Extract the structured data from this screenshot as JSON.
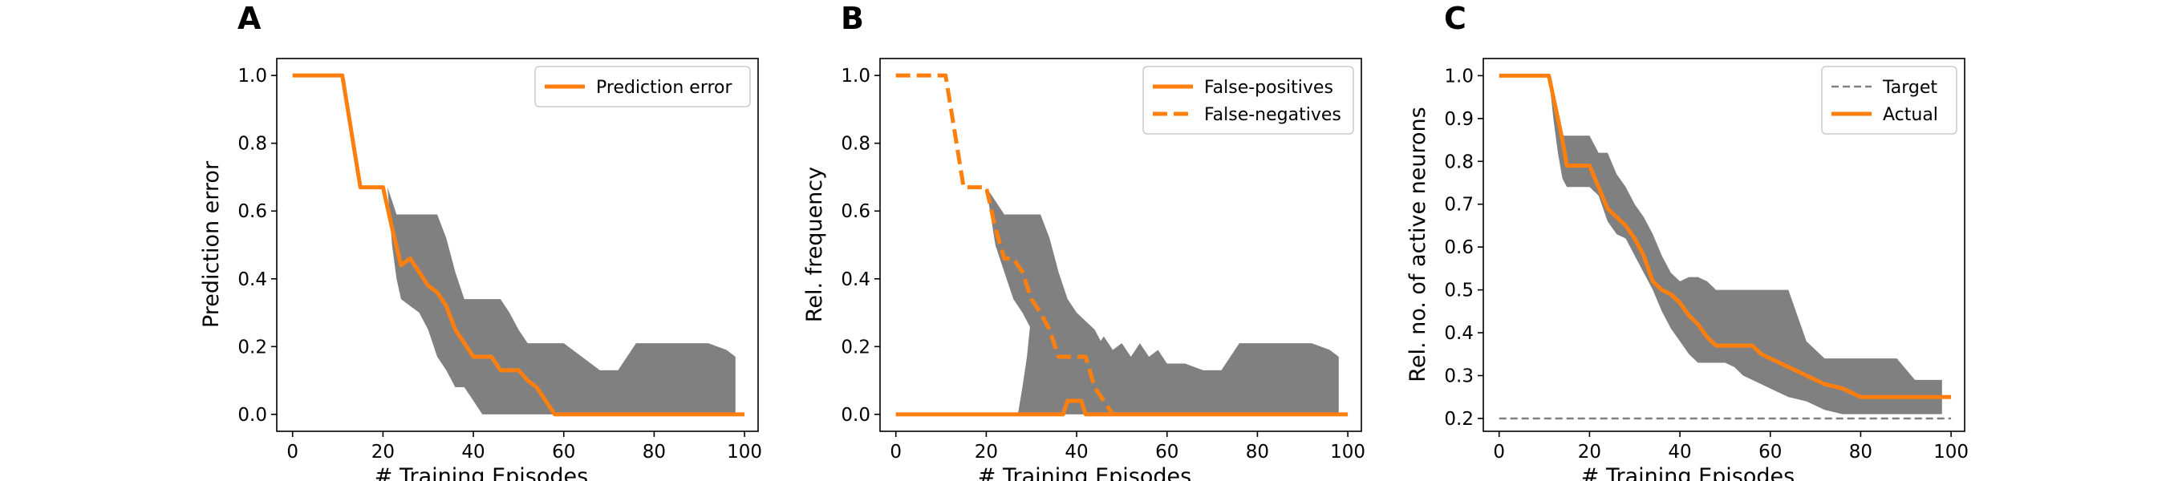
{
  "colors": {
    "line": "#ff7f0e",
    "band": "#808080",
    "target": "#808080",
    "axes": "#000000"
  },
  "chart_data": [
    {
      "panel": "A",
      "type": "line",
      "xlabel": "# Training Episodes",
      "ylabel": "Prediction error",
      "xlim": [
        -3.5,
        103
      ],
      "ylim": [
        -0.05,
        1.05
      ],
      "xticks": [
        0,
        20,
        40,
        60,
        80,
        100
      ],
      "xtick_labels": [
        "0",
        "20",
        "40",
        "60",
        "80",
        "100"
      ],
      "yticks": [
        0.0,
        0.2,
        0.4,
        0.6,
        0.8,
        1.0
      ],
      "ytick_labels": [
        "0.0",
        "0.2",
        "0.4",
        "0.6",
        "0.8",
        "1.0"
      ],
      "legend_position": "top-right",
      "bands": [
        {
          "x": [
            21,
            22,
            23,
            24,
            26,
            28,
            30,
            32,
            34,
            36,
            38,
            40,
            42,
            44,
            46,
            48,
            50,
            52,
            54,
            56,
            58,
            60,
            64,
            68,
            72,
            76,
            80,
            84,
            88,
            92,
            96,
            98
          ],
          "upper": [
            0.67,
            0.63,
            0.59,
            0.59,
            0.59,
            0.59,
            0.59,
            0.59,
            0.52,
            0.42,
            0.34,
            0.34,
            0.34,
            0.34,
            0.34,
            0.3,
            0.25,
            0.21,
            0.21,
            0.21,
            0.21,
            0.21,
            0.17,
            0.13,
            0.13,
            0.21,
            0.21,
            0.21,
            0.21,
            0.21,
            0.19,
            0.17
          ],
          "lower": [
            0.67,
            0.5,
            0.4,
            0.34,
            0.32,
            0.3,
            0.25,
            0.17,
            0.13,
            0.08,
            0.08,
            0.04,
            0.0,
            0.0,
            0.0,
            0.0,
            0.0,
            0.0,
            0.0,
            0.0,
            0.0,
            0.0,
            0.0,
            0.0,
            0.0,
            0.0,
            0.0,
            0.0,
            0.0,
            0.0,
            0.0,
            0.0
          ]
        }
      ],
      "series": [
        {
          "name": "Prediction error",
          "style": "solid",
          "x": [
            0,
            11,
            15,
            20,
            22,
            24,
            26,
            28,
            30,
            32,
            34,
            36,
            38,
            40,
            44,
            46,
            50,
            52,
            54,
            56,
            58,
            100
          ],
          "y": [
            1.0,
            1.0,
            0.67,
            0.67,
            0.55,
            0.44,
            0.46,
            0.42,
            0.38,
            0.36,
            0.32,
            0.25,
            0.21,
            0.17,
            0.17,
            0.13,
            0.13,
            0.1,
            0.08,
            0.04,
            0.0,
            0.0
          ]
        }
      ]
    },
    {
      "panel": "B",
      "type": "line",
      "xlabel": "# Training Episodes",
      "ylabel": "Rel. frequency",
      "xlim": [
        -3.5,
        103
      ],
      "ylim": [
        -0.05,
        1.05
      ],
      "xticks": [
        0,
        20,
        40,
        60,
        80,
        100
      ],
      "xtick_labels": [
        "0",
        "20",
        "40",
        "60",
        "80",
        "100"
      ],
      "yticks": [
        0.0,
        0.2,
        0.4,
        0.6,
        0.8,
        1.0
      ],
      "ytick_labels": [
        "0.0",
        "0.2",
        "0.4",
        "0.6",
        "0.8",
        "1.0"
      ],
      "legend_position": "top-right",
      "bands": [
        {
          "x": [
            20,
            22,
            24,
            26,
            28,
            30,
            32,
            34,
            36,
            38,
            40,
            44,
            48,
            50,
            52
          ],
          "upper": [
            0.67,
            0.63,
            0.59,
            0.59,
            0.59,
            0.59,
            0.59,
            0.52,
            0.42,
            0.34,
            0.3,
            0.25,
            0.15,
            0.05,
            0.0
          ],
          "lower": [
            0.67,
            0.5,
            0.42,
            0.34,
            0.3,
            0.25,
            0.17,
            0.12,
            0.08,
            0.06,
            0.04,
            0.0,
            0.0,
            0.0,
            0.0
          ]
        },
        {
          "x": [
            27,
            28,
            29,
            30,
            32,
            34,
            36,
            38,
            40,
            42,
            44,
            46,
            48,
            50,
            52,
            54,
            56,
            58,
            60,
            64,
            68,
            72,
            76,
            80,
            84,
            88,
            92,
            96,
            98
          ],
          "upper": [
            0.0,
            0.08,
            0.17,
            0.3,
            0.42,
            0.4,
            0.21,
            0.15,
            0.19,
            0.23,
            0.19,
            0.23,
            0.19,
            0.21,
            0.17,
            0.21,
            0.17,
            0.19,
            0.15,
            0.15,
            0.13,
            0.13,
            0.21,
            0.21,
            0.21,
            0.21,
            0.21,
            0.19,
            0.17
          ],
          "lower": [
            0.0,
            0.0,
            0.0,
            0.0,
            0.0,
            0.0,
            0.0,
            0.0,
            0.0,
            0.0,
            0.0,
            0.0,
            0.0,
            0.0,
            0.0,
            0.0,
            0.0,
            0.0,
            0.0,
            0.0,
            0.0,
            0.0,
            0.0,
            0.0,
            0.0,
            0.0,
            0.0,
            0.0,
            0.0
          ]
        }
      ],
      "series": [
        {
          "name": "False-positives",
          "style": "solid",
          "x": [
            0,
            37,
            38,
            40,
            41,
            42,
            100
          ],
          "y": [
            0.0,
            0.0,
            0.04,
            0.04,
            0.04,
            0.0,
            0.0
          ]
        },
        {
          "name": "False-negatives",
          "style": "dashed",
          "x": [
            0,
            11,
            15,
            20,
            22,
            24,
            26,
            28,
            30,
            32,
            34,
            36,
            38,
            40,
            42,
            44,
            46,
            48
          ],
          "y": [
            1.0,
            1.0,
            0.67,
            0.67,
            0.55,
            0.46,
            0.46,
            0.42,
            0.34,
            0.3,
            0.25,
            0.17,
            0.17,
            0.17,
            0.17,
            0.08,
            0.04,
            0.0
          ]
        }
      ]
    },
    {
      "panel": "C",
      "type": "line",
      "xlabel": "# Training Episodes",
      "ylabel": "Rel. no. of active neurons",
      "xlim": [
        -3.5,
        103
      ],
      "ylim": [
        0.17,
        1.04
      ],
      "xticks": [
        0,
        20,
        40,
        60,
        80,
        100
      ],
      "xtick_labels": [
        "0",
        "20",
        "40",
        "60",
        "80",
        "100"
      ],
      "yticks": [
        0.2,
        0.3,
        0.4,
        0.5,
        0.6,
        0.7,
        0.8,
        0.9,
        1.0
      ],
      "ytick_labels": [
        "0.2",
        "0.3",
        "0.4",
        "0.5",
        "0.6",
        "0.7",
        "0.8",
        "0.9",
        "1.0"
      ],
      "legend_position": "top-right",
      "bands": [
        {
          "x": [
            11,
            12,
            13,
            14,
            15,
            16,
            18,
            20,
            22,
            24,
            26,
            28,
            30,
            32,
            34,
            36,
            38,
            40,
            42,
            44,
            46,
            48,
            50,
            52,
            54,
            56,
            58,
            60,
            64,
            68,
            72,
            76,
            80,
            84,
            88,
            92,
            96,
            98
          ],
          "upper": [
            1.0,
            0.95,
            0.9,
            0.86,
            0.86,
            0.86,
            0.86,
            0.86,
            0.82,
            0.82,
            0.77,
            0.74,
            0.7,
            0.67,
            0.63,
            0.58,
            0.54,
            0.52,
            0.53,
            0.53,
            0.52,
            0.5,
            0.5,
            0.5,
            0.5,
            0.5,
            0.5,
            0.5,
            0.5,
            0.38,
            0.34,
            0.34,
            0.34,
            0.34,
            0.34,
            0.29,
            0.29,
            0.29
          ],
          "lower": [
            1.0,
            0.9,
            0.82,
            0.76,
            0.74,
            0.74,
            0.74,
            0.74,
            0.72,
            0.66,
            0.63,
            0.62,
            0.58,
            0.54,
            0.5,
            0.45,
            0.41,
            0.38,
            0.35,
            0.33,
            0.33,
            0.33,
            0.33,
            0.32,
            0.3,
            0.29,
            0.28,
            0.27,
            0.25,
            0.24,
            0.22,
            0.21,
            0.21,
            0.21,
            0.21,
            0.21,
            0.21,
            0.21
          ]
        }
      ],
      "series": [
        {
          "name": "Target",
          "style": "dashed-thin",
          "x": [
            0,
            100
          ],
          "y": [
            0.2,
            0.2
          ]
        },
        {
          "name": "Actual",
          "style": "solid",
          "x": [
            0,
            11,
            12,
            13,
            14,
            15,
            18,
            20,
            22,
            24,
            26,
            28,
            30,
            32,
            34,
            36,
            38,
            40,
            42,
            44,
            46,
            48,
            50,
            52,
            54,
            56,
            58,
            60,
            64,
            68,
            72,
            76,
            80,
            84,
            88,
            92,
            96,
            100
          ],
          "y": [
            1.0,
            1.0,
            0.95,
            0.9,
            0.85,
            0.79,
            0.79,
            0.79,
            0.74,
            0.69,
            0.67,
            0.65,
            0.62,
            0.58,
            0.52,
            0.5,
            0.49,
            0.47,
            0.44,
            0.42,
            0.39,
            0.37,
            0.37,
            0.37,
            0.37,
            0.37,
            0.35,
            0.34,
            0.32,
            0.3,
            0.28,
            0.27,
            0.25,
            0.25,
            0.25,
            0.25,
            0.25,
            0.25
          ]
        }
      ]
    }
  ]
}
